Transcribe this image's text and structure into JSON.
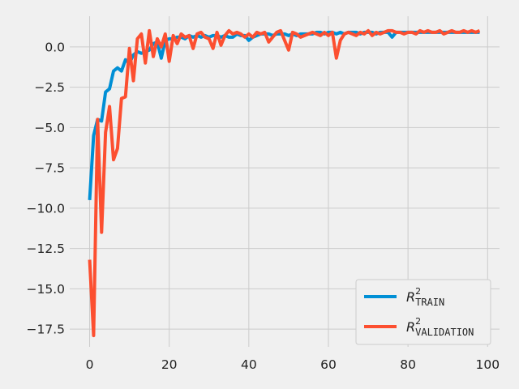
{
  "chart_data": {
    "type": "line",
    "title": "",
    "xlabel": "",
    "ylabel": "",
    "xlim": [
      -5,
      103
    ],
    "ylim": [
      -18.6,
      1.9
    ],
    "xticks": [
      0,
      20,
      40,
      60,
      80,
      100
    ],
    "yticks": [
      0.0,
      -2.5,
      -5.0,
      -7.5,
      -10.0,
      -12.5,
      -15.0,
      -17.5
    ],
    "x_tick_labels": [
      "0",
      "20",
      "40",
      "60",
      "80",
      "100"
    ],
    "y_tick_labels": [
      "0.0",
      "−2.5",
      "−5.0",
      "−7.5",
      "−10.0",
      "−12.5",
      "−15.0",
      "−17.5"
    ],
    "grid": true,
    "legend_position": "lower-right",
    "series": [
      {
        "name": "R² TRAIN",
        "legend_base": "R",
        "legend_sup": "2",
        "legend_sub": "TRAIN",
        "color": "#008fd5",
        "values": [
          -9.5,
          -5.5,
          -4.5,
          -4.6,
          -2.8,
          -2.6,
          -1.5,
          -1.3,
          -1.5,
          -0.8,
          -1.0,
          -0.5,
          -0.3,
          -0.4,
          -0.3,
          -0.2,
          0.2,
          0.3,
          -0.7,
          0.4,
          0.5,
          0.5,
          0.6,
          0.6,
          0.5,
          0.7,
          0.6,
          0.7,
          0.6,
          0.7,
          0.6,
          0.7,
          0.7,
          0.6,
          0.7,
          0.6,
          0.6,
          0.8,
          0.7,
          0.7,
          0.4,
          0.6,
          0.7,
          0.8,
          0.8,
          0.8,
          0.7,
          0.8,
          0.8,
          0.8,
          0.7,
          0.8,
          0.7,
          0.8,
          0.8,
          0.8,
          0.8,
          0.9,
          0.9,
          0.8,
          0.9,
          0.9,
          0.8,
          0.9,
          0.8,
          0.9,
          0.9,
          0.9,
          0.8,
          0.9,
          0.9,
          0.9,
          0.8,
          0.9,
          0.9,
          0.9,
          0.6,
          0.9,
          0.9,
          0.9,
          0.9,
          0.9,
          0.9,
          0.9,
          0.9,
          0.9,
          0.9,
          0.9,
          0.9,
          0.9,
          0.9,
          0.9,
          0.9,
          0.9,
          0.9,
          0.9,
          0.9,
          0.9,
          0.9
        ]
      },
      {
        "name": "R² VALIDATION",
        "legend_base": "R",
        "legend_sup": "2",
        "legend_sub": "VALIDATION",
        "color": "#fc4f30",
        "values": [
          -13.2,
          -17.9,
          -4.5,
          -11.5,
          -5.3,
          -3.7,
          -7.0,
          -6.3,
          -3.2,
          -3.1,
          -0.1,
          -2.1,
          0.5,
          0.8,
          -1.0,
          1.0,
          -0.6,
          0.5,
          0.0,
          0.8,
          -0.9,
          0.7,
          0.2,
          0.8,
          0.6,
          0.7,
          -0.1,
          0.8,
          0.9,
          0.6,
          0.5,
          -0.1,
          0.9,
          0.1,
          0.7,
          1.0,
          0.8,
          0.9,
          0.8,
          0.6,
          0.8,
          0.6,
          0.9,
          0.8,
          0.9,
          0.3,
          0.6,
          0.9,
          1.0,
          0.4,
          -0.2,
          0.9,
          0.8,
          0.6,
          0.7,
          0.8,
          0.9,
          0.8,
          0.7,
          0.9,
          0.7,
          0.9,
          -0.7,
          0.4,
          0.8,
          0.9,
          0.8,
          0.7,
          0.9,
          0.8,
          1.0,
          0.7,
          0.9,
          0.8,
          0.9,
          1.0,
          1.0,
          0.9,
          0.9,
          0.8,
          0.9,
          0.9,
          0.8,
          1.0,
          0.9,
          1.0,
          0.9,
          0.9,
          1.0,
          0.8,
          0.9,
          1.0,
          0.9,
          0.9,
          1.0,
          0.9,
          1.0,
          0.9,
          1.0
        ]
      }
    ]
  }
}
